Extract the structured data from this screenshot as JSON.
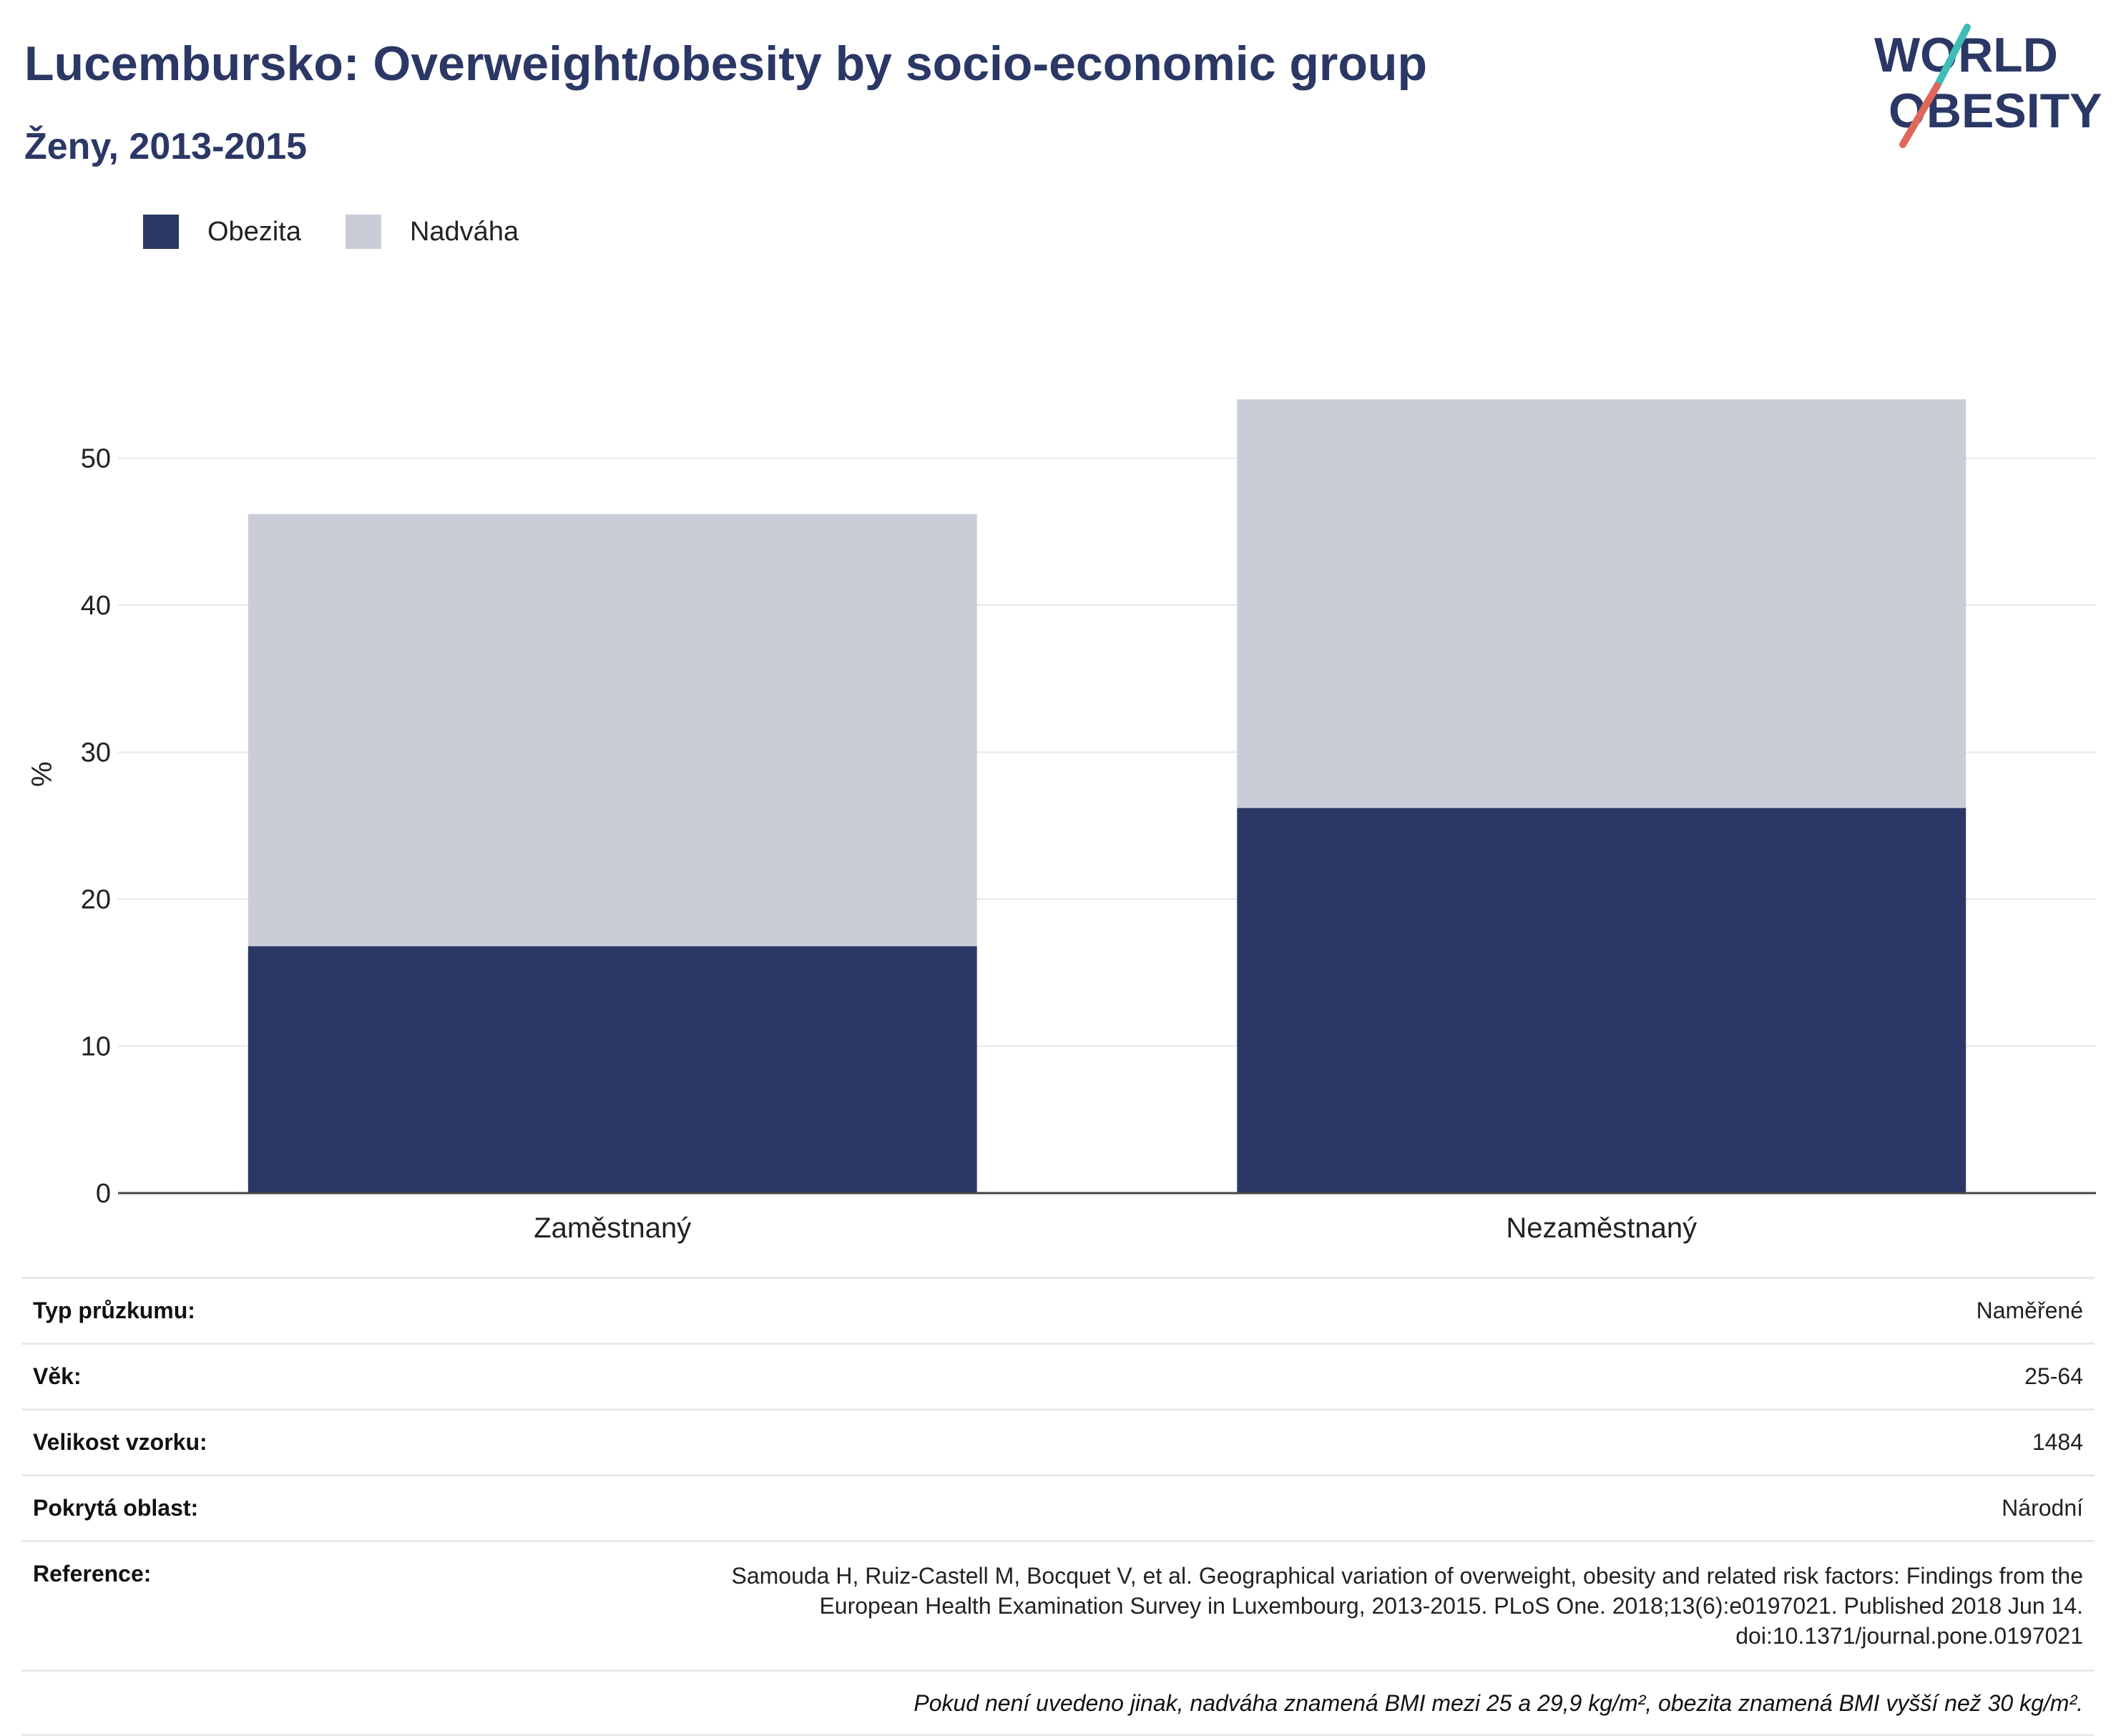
{
  "header": {
    "title": "Lucembursko: Overweight/obesity by socio-economic group",
    "subtitle": "Ženy, 2013-2015"
  },
  "logo": {
    "line1": "WORLD",
    "line2": "OBESITY",
    "stroke_colors": [
      "#3fbcb6",
      "#e0685a"
    ]
  },
  "legend": [
    {
      "label": "Obezita",
      "color": "#2b3765"
    },
    {
      "label": "Nadváha",
      "color": "#cacdd8"
    }
  ],
  "chart_data": {
    "type": "bar",
    "stacked": true,
    "categories": [
      "Zaměstnaný",
      "Nezaměstnaný"
    ],
    "series": [
      {
        "name": "Obezita",
        "color": "#2b3765",
        "values": [
          16.8,
          26.2
        ]
      },
      {
        "name": "Nadváha",
        "color": "#cacdd8",
        "values": [
          29.4,
          27.8
        ]
      }
    ],
    "ylabel": "%",
    "ylim": [
      0,
      57
    ],
    "yticks": [
      0,
      10,
      20,
      30,
      40,
      50
    ],
    "grid": true,
    "legend_position": "top-left"
  },
  "info": {
    "rows": [
      {
        "key": "Typ průzkumu:",
        "value": "Naměřené"
      },
      {
        "key": "Věk:",
        "value": "25-64"
      },
      {
        "key": "Velikost vzorku:",
        "value": "1484"
      },
      {
        "key": "Pokrytá oblast:",
        "value": "Národní"
      }
    ],
    "reference_key": "Reference:",
    "reference_lines": [
      "Samouda H, Ruiz-Castell M, Bocquet V, et al. Geographical variation of overweight, obesity and related risk factors: Findings from the",
      "European Health Examination Survey in Luxembourg, 2013-2015. PLoS One. 2018;13(6):e0197021. Published 2018 Jun 14.",
      "doi:10.1371/journal.pone.0197021"
    ],
    "note": "Pokud není uvedeno jinak, nadváha znamená BMI mezi 25 a 29,9 kg/m², obezita znamená BMI vyšší než 30 kg/m²."
  }
}
